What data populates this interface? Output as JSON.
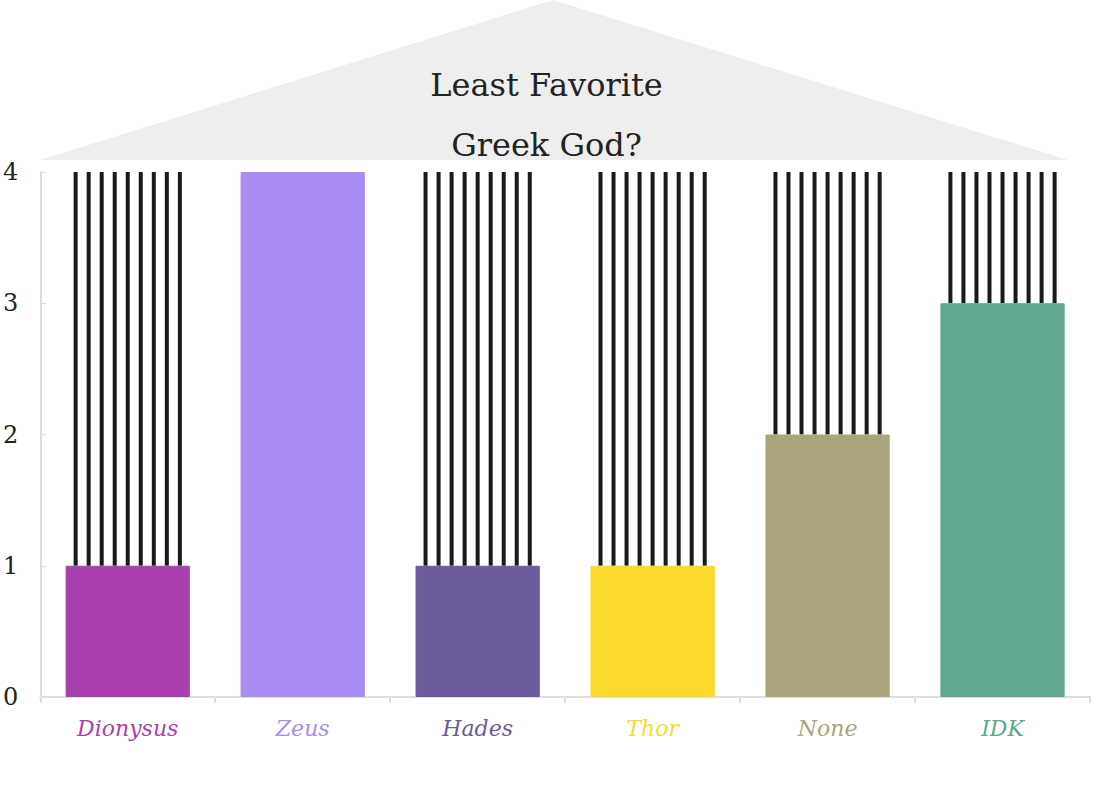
{
  "chart_data": {
    "type": "bar",
    "title": "Least Favorite\nGreek God?",
    "categories": [
      "Dionysus",
      "Zeus",
      "Hades",
      "Thor",
      "None",
      "IDK"
    ],
    "values": [
      1,
      4,
      1,
      1,
      2,
      3
    ],
    "colors": [
      "#a93fae",
      "#a98cf2",
      "#6b5b9a",
      "#fbd92b",
      "#aaa57a",
      "#5fa88e"
    ],
    "ylim": [
      0,
      4
    ],
    "yticks": [
      0,
      1,
      2,
      3,
      4
    ],
    "grid": false
  }
}
